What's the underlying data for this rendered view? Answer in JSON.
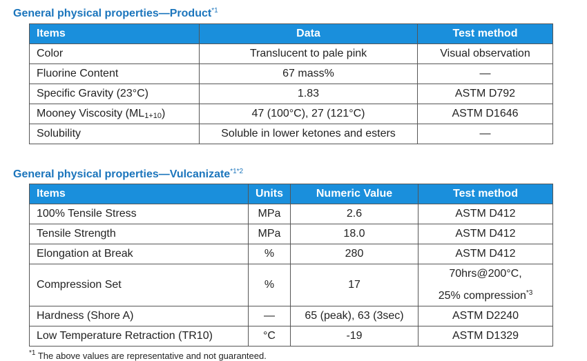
{
  "sections": [
    {
      "title": "General physical properties—Product",
      "title_note": "*1",
      "table": {
        "header": [
          "Items",
          "Data",
          "Test method"
        ],
        "rows": [
          [
            "Color",
            "Translucent to pale pink",
            "Visual observation"
          ],
          [
            "Fluorine Content",
            "67 mass%",
            "—"
          ],
          [
            "Specific Gravity (23°C)",
            "1.83",
            "ASTM D792"
          ],
          [
            {
              "text": "Mooney Viscosity (ML",
              "sub": "1+10",
              "tail": ")"
            },
            "47 (100°C), 27 (121°C)",
            "ASTM D1646"
          ],
          [
            "Solubility",
            "Soluble in lower ketones and esters",
            "—"
          ]
        ]
      }
    },
    {
      "title": "General physical properties—Vulcanizate",
      "title_note": "*1*2",
      "table": {
        "header": [
          "Items",
          "Units",
          "Numeric Value",
          "Test method"
        ],
        "rows": [
          [
            "100% Tensile Stress",
            "MPa",
            "2.6",
            "ASTM D412"
          ],
          [
            "Tensile Strength",
            "MPa",
            "18.0",
            "ASTM D412"
          ],
          [
            "Elongation at Break",
            "%",
            "280",
            "ASTM D412"
          ],
          [
            "Compression Set",
            "%",
            "17",
            {
              "lines": [
                "70hrs@200°C,",
                "25% compression"
              ],
              "sup": "*3"
            }
          ],
          [
            "Hardness (Shore A)",
            "—",
            "65 (peak), 63 (3sec)",
            "ASTM D2240"
          ],
          [
            "Low Temperature Retraction (TR10)",
            "°C",
            "-19",
            "ASTM D1329"
          ]
        ]
      }
    }
  ],
  "footnote": {
    "mark": "*1",
    "text": "The above values are representative and not guaranteed."
  }
}
